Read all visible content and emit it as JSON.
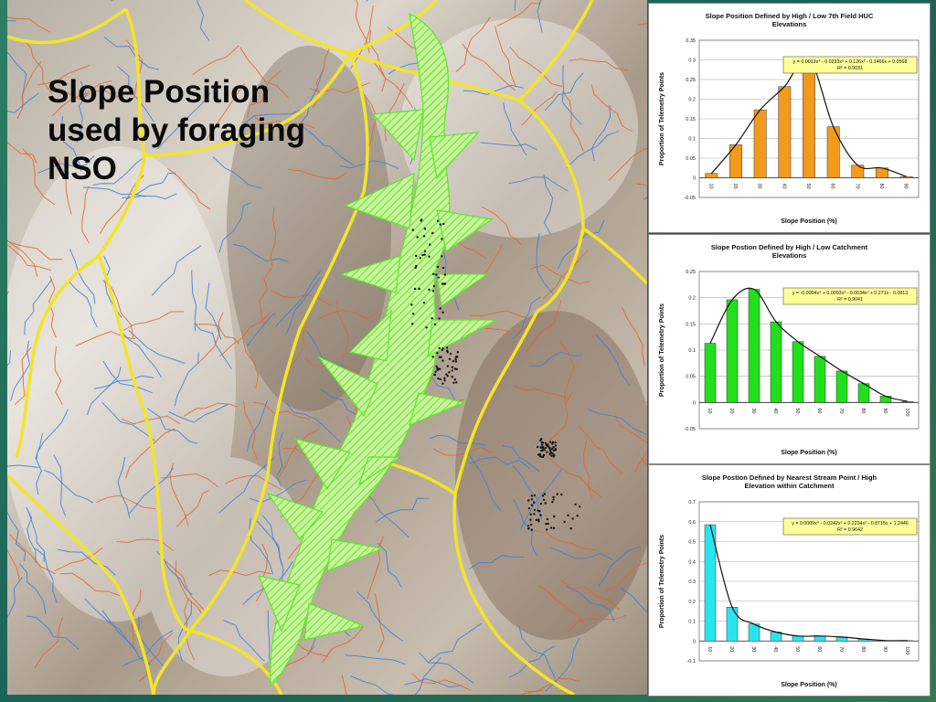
{
  "slide": {
    "title_lines": [
      "Slope Position",
      "used by foraging",
      "NSO"
    ]
  },
  "colors": {
    "chart1_bar": "#f39a1c",
    "chart2_bar": "#1fe01a",
    "chart3_bar": "#27e5f0",
    "curve": "#111111",
    "equation_box": "#ffff99",
    "watershed_boundary": "#f2e52a",
    "stream_blue": "#3a7fd8",
    "stream_orange": "#e0662d",
    "hatch_green": "#7ef23a"
  },
  "chart_data": [
    {
      "type": "bar",
      "title_lines": [
        "Slope Position Defined by High / Low 7th Field HUC",
        "Elevations"
      ],
      "xlabel": "Slope Position (%)",
      "ylabel": "Proportion of Telemetry Points",
      "categories": [
        "10",
        "20",
        "30",
        "40",
        "50",
        "60",
        "70",
        "80",
        "90"
      ],
      "values": [
        0.011,
        0.084,
        0.173,
        0.232,
        0.304,
        0.13,
        0.032,
        0.025,
        0.003
      ],
      "ylim": [
        -0.05,
        0.35
      ],
      "yticks": [
        "0.35",
        "0.3",
        "0.25",
        "0.2",
        "0.15",
        "0.1",
        "0.05",
        "0",
        "-0.05"
      ],
      "grid": true,
      "trendline": {
        "equation": "y = 0.0013x⁴ - 0.0233x³ + 0.126x² - 0.1466x + 0.0568",
        "r2": "R² = 0.9031"
      }
    },
    {
      "type": "bar",
      "title_lines": [
        "Slope Postion Defined by High / Low Catchment",
        "Elevations"
      ],
      "xlabel": "Slope Position (%)",
      "ylabel": "Proportion of Telemetry Points",
      "categories": [
        "10",
        "20",
        "30",
        "40",
        "50",
        "60",
        "70",
        "80",
        "90",
        "100"
      ],
      "values": [
        0.113,
        0.196,
        0.216,
        0.154,
        0.116,
        0.088,
        0.06,
        0.036,
        0.012,
        0.002
      ],
      "ylim": [
        -0.05,
        0.25
      ],
      "yticks": [
        "0.25",
        "0.2",
        "0.15",
        "0.1",
        "0.05",
        "0",
        "-0.05"
      ],
      "grid": true,
      "trendline": {
        "equation": "y = -0.0004x⁴ + 0.0093x³ - 0.0634x² + 0.271x - 0.0813",
        "r2": "R² = 0.9041"
      }
    },
    {
      "type": "bar",
      "title_lines": [
        "Slope Postion Defined by Nearest Stream Point / High",
        "Elevation within Catchment"
      ],
      "xlabel": "Slope Position (%)",
      "ylabel": "Proportion of Telemetry Points",
      "categories": [
        "10",
        "20",
        "30",
        "40",
        "50",
        "60",
        "70",
        "80",
        "90",
        "100"
      ],
      "values": [
        0.585,
        0.17,
        0.085,
        0.045,
        0.025,
        0.025,
        0.02,
        0.01,
        0.002,
        0.002
      ],
      "ylim": [
        -0.1,
        0.7
      ],
      "yticks": [
        "0.7",
        "0.6",
        "0.5",
        "0.4",
        "0.3",
        "0.2",
        "0.1",
        "0",
        "-0.1"
      ],
      "grid": true,
      "trendline": {
        "equation": "y = 0.0009x⁴ - 0.0242x³ + 0.2234x² - 0.8715x + 1.2446",
        "r2": "R² = 0.9642"
      }
    }
  ]
}
